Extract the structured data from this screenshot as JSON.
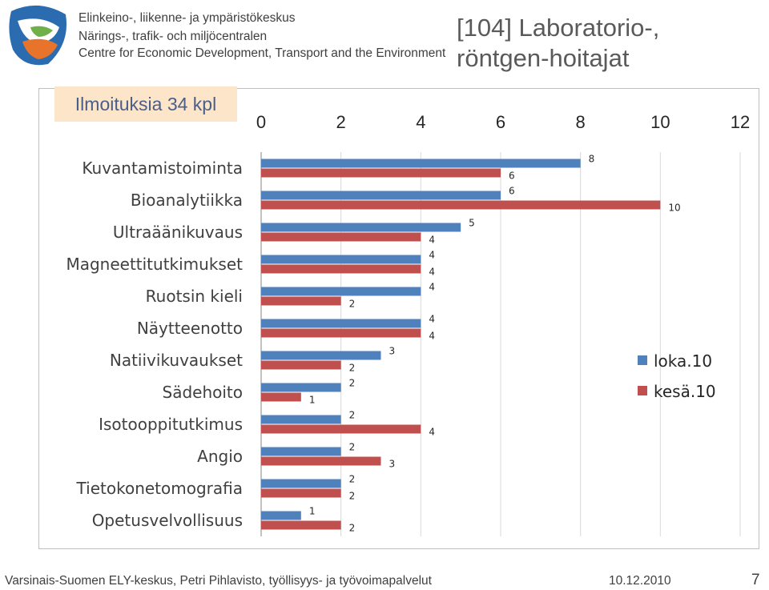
{
  "header": {
    "org_lines": [
      "Elinkeino-, liikenne- ja ympäristökeskus",
      "Närings-, trafik- och miljöcentralen",
      "Centre for Economic Development, Transport and the Environment"
    ],
    "title_lines": [
      "[104] Laboratorio-,",
      "röntgen-hoitajat"
    ]
  },
  "count_box": "Ilmoituksia 34 kpl",
  "colors": {
    "series_loka": "#4f81bd",
    "series_kesa": "#c0504d",
    "logo_blue": "#2b6cb0",
    "logo_orange": "#e8742b"
  },
  "chart_data": {
    "type": "bar",
    "orientation": "horizontal",
    "xlim": [
      0,
      12
    ],
    "ticks": [
      "0",
      "2",
      "4",
      "6",
      "8",
      "10",
      "12"
    ],
    "grid": true,
    "legend_position": "right",
    "categories": [
      "Kuvantamistoiminta",
      "Bioanalytiikka",
      "Ultraäänikuvaus",
      "Magneettitutkimukset",
      "Ruotsin kieli",
      "Näytteenotto",
      "Natiivikuvaukset",
      "Sädehoito",
      "Isotooppitutkimus",
      "Angio",
      "Tietokonetomografia",
      "Opetusvelvollisuus"
    ],
    "series": [
      {
        "name": "loka.10",
        "values": [
          8,
          6,
          5,
          4,
          4,
          4,
          3,
          2,
          2,
          2,
          2,
          1
        ]
      },
      {
        "name": "kesä.10",
        "values": [
          6,
          10,
          4,
          4,
          2,
          4,
          2,
          1,
          4,
          3,
          2,
          2
        ]
      }
    ]
  },
  "footer": {
    "source": "Varsinais-Suomen ELY-keskus, Petri Pihlavisto, työllisyys- ja työvoimapalvelut",
    "date": "10.12.2010",
    "page": "7"
  }
}
